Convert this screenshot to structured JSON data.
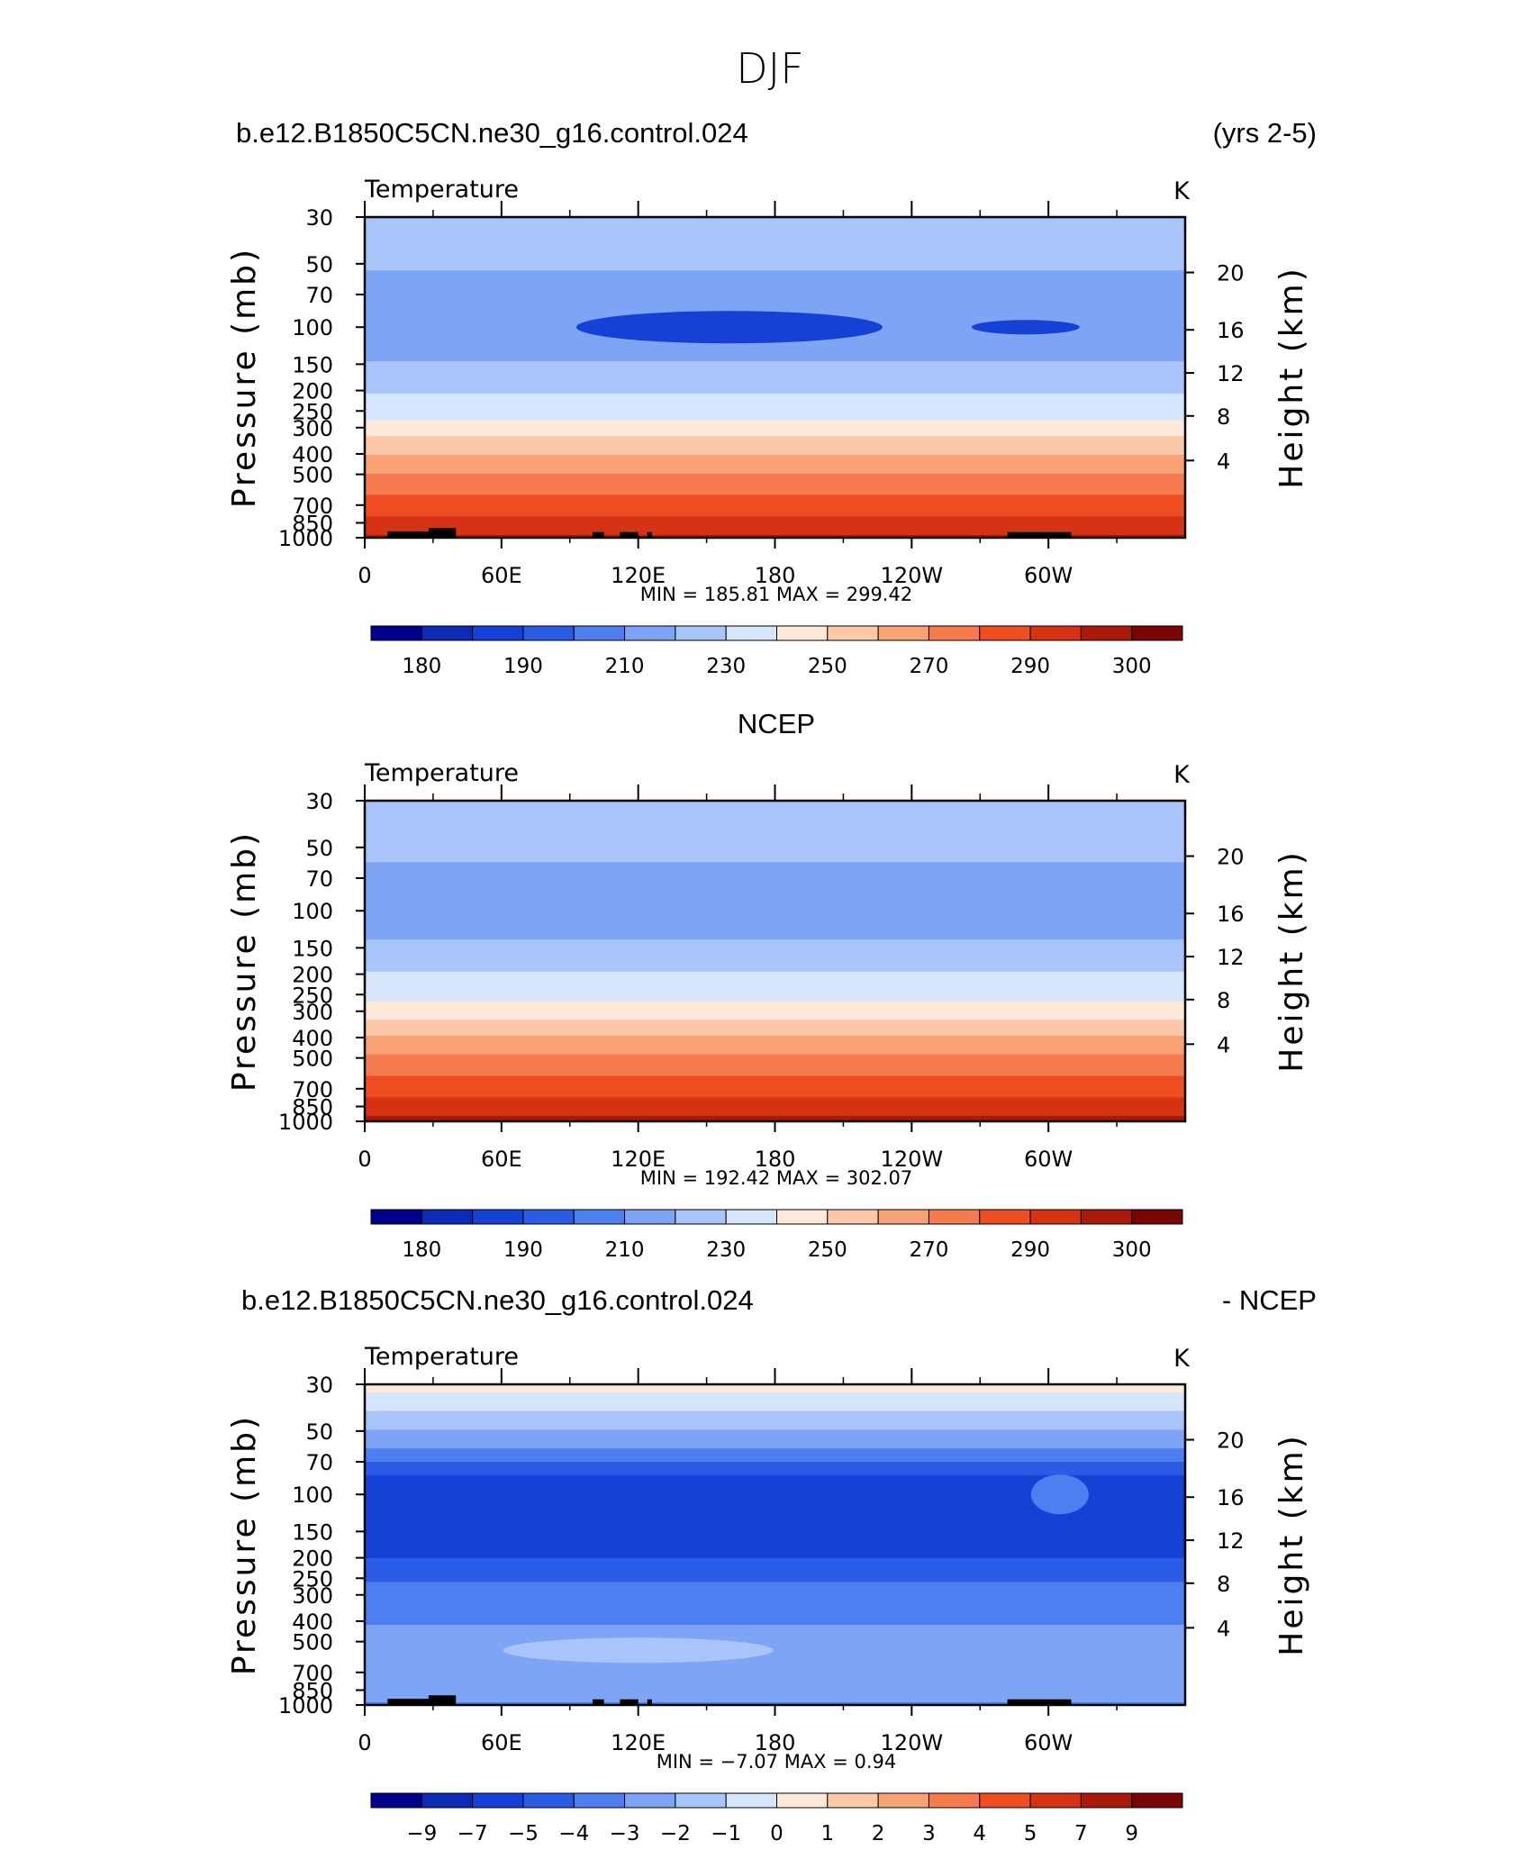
{
  "page_title": "DJF",
  "colors": {
    "temp_levels": [
      "#00008f",
      "#0a2bb5",
      "#1641d6",
      "#2a5ce6",
      "#4d7ff0",
      "#7ea4f5",
      "#a8c4fa",
      "#d4e5fd",
      "#fde8d9",
      "#fcc8a8",
      "#f9a276",
      "#f57a4e",
      "#ef4d22",
      "#d63214",
      "#aa1a0c",
      "#7a0505"
    ],
    "diff_levels": [
      "#00008f",
      "#0a2bb5",
      "#1641d6",
      "#2a5ce6",
      "#4d7ff0",
      "#7ea4f5",
      "#a8c4fa",
      "#d4e5fd",
      "#fde8d9",
      "#fcc8a8",
      "#f9a276",
      "#f57a4e",
      "#ef4d22",
      "#d63214",
      "#aa1a0c",
      "#7a0505"
    ]
  },
  "chart_data": [
    {
      "type": "heatmap",
      "left_title": "b.e12.B1850C5CN.ne30_g16.control.024",
      "right_title": "(yrs 2-5)",
      "center_title": "",
      "variable": "Temperature",
      "units": "K",
      "ylabel": "Pressure (mb)",
      "ylabel_right": "Height (km)",
      "x_ticks": [
        "0",
        "60E",
        "120E",
        "180",
        "120W",
        "60W"
      ],
      "x_range": [
        0,
        360
      ],
      "y_ticks": [
        "30",
        "50",
        "70",
        "100",
        "150",
        "200",
        "250",
        "300",
        "400",
        "500",
        "700",
        "850",
        "1000"
      ],
      "height_ticks": [
        "20",
        "16",
        "12",
        "8",
        "4"
      ],
      "y_range": [
        1000,
        30
      ],
      "stats": "MIN =  185.81   MAX =  299.42",
      "min": 185.81,
      "max": 299.42,
      "colorbar_labels": [
        "180",
        "190",
        "210",
        "230",
        "250",
        "270",
        "290",
        "300"
      ]
    },
    {
      "type": "heatmap",
      "left_title": "",
      "right_title": "",
      "center_title": "NCEP",
      "variable": "Temperature",
      "units": "K",
      "ylabel": "Pressure (mb)",
      "ylabel_right": "Height (km)",
      "x_ticks": [
        "0",
        "60E",
        "120E",
        "180",
        "120W",
        "60W"
      ],
      "x_range": [
        0,
        360
      ],
      "y_ticks": [
        "30",
        "50",
        "70",
        "100",
        "150",
        "200",
        "250",
        "300",
        "400",
        "500",
        "700",
        "850",
        "1000"
      ],
      "height_ticks": [
        "20",
        "16",
        "12",
        "8",
        "4"
      ],
      "y_range": [
        1000,
        30
      ],
      "stats": "MIN =  192.42   MAX =  302.07",
      "min": 192.42,
      "max": 302.07,
      "colorbar_labels": [
        "180",
        "190",
        "210",
        "230",
        "250",
        "270",
        "290",
        "300"
      ]
    },
    {
      "type": "heatmap",
      "left_title": "b.e12.B1850C5CN.ne30_g16.control.024",
      "right_title": "- NCEP",
      "center_title": "",
      "variable": "Temperature",
      "units": "K",
      "ylabel": "Pressure (mb)",
      "ylabel_right": "Height (km)",
      "x_ticks": [
        "0",
        "60E",
        "120E",
        "180",
        "120W",
        "60W"
      ],
      "x_range": [
        0,
        360
      ],
      "y_ticks": [
        "30",
        "50",
        "70",
        "100",
        "150",
        "200",
        "250",
        "300",
        "400",
        "500",
        "700",
        "850",
        "1000"
      ],
      "height_ticks": [
        "20",
        "16",
        "12",
        "8",
        "4"
      ],
      "y_range": [
        1000,
        30
      ],
      "stats": "MIN =   −7.07   MAX =     0.94",
      "min": -7.07,
      "max": 0.94,
      "colorbar_labels": [
        "−9",
        "−7",
        "−5",
        "−4",
        "−3",
        "−2",
        "−1",
        "0",
        "1",
        "2",
        "3",
        "4",
        "5",
        "7",
        "9"
      ]
    }
  ]
}
